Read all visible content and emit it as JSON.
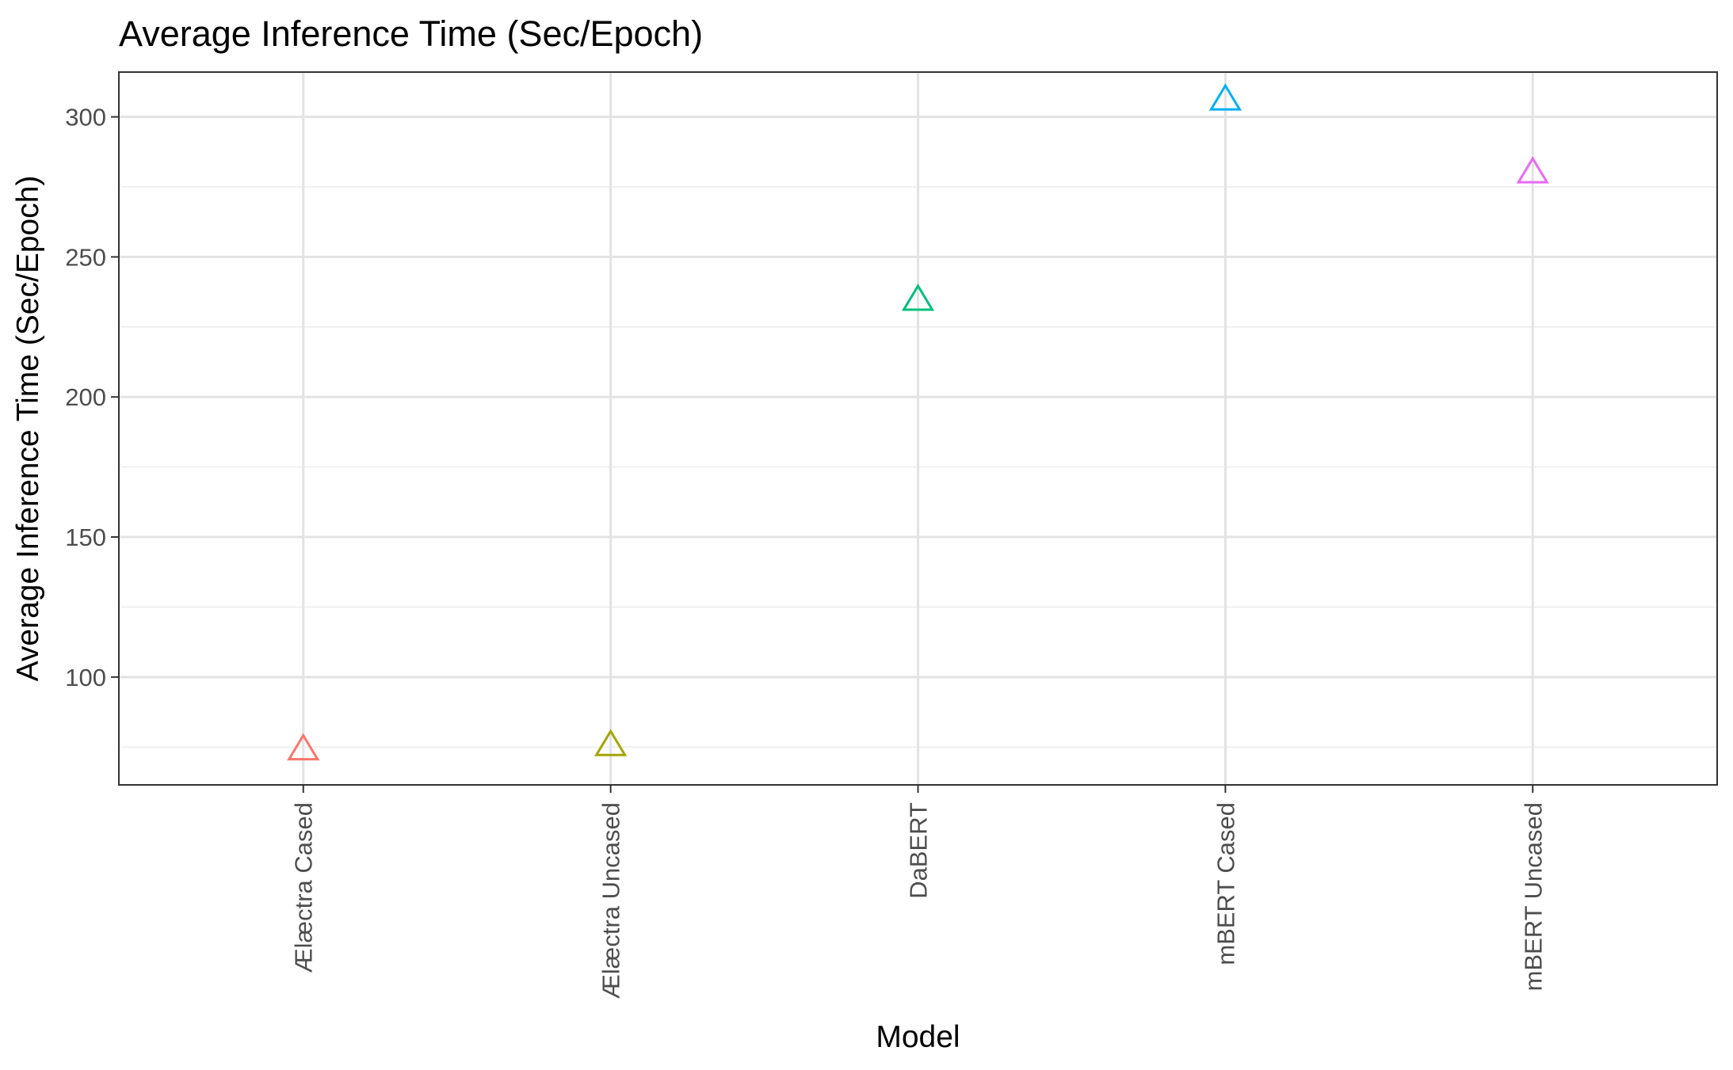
{
  "chart_data": {
    "type": "scatter",
    "title": "Average Inference Time (Sec/Epoch)",
    "xlabel": "Model",
    "ylabel": "Average Inference Time (Sec/Epoch)",
    "categories": [
      "Ælæctra Cased",
      "Ælæctra Uncased",
      "DaBERT",
      "mBERT Cased",
      "mBERT Uncased"
    ],
    "values": [
      73.5,
      75,
      234,
      305.5,
      279.5
    ],
    "colors": [
      "#F8766D",
      "#A3A500",
      "#00BF7D",
      "#00B0F6",
      "#E76BF3"
    ],
    "marker": "open-triangle",
    "ylim": [
      61.5,
      316
    ],
    "yticks": [
      100,
      150,
      200,
      250,
      300
    ],
    "ytick_labels": [
      "100",
      "150",
      "200",
      "250",
      "300"
    ],
    "grid": true,
    "legend": "none"
  }
}
